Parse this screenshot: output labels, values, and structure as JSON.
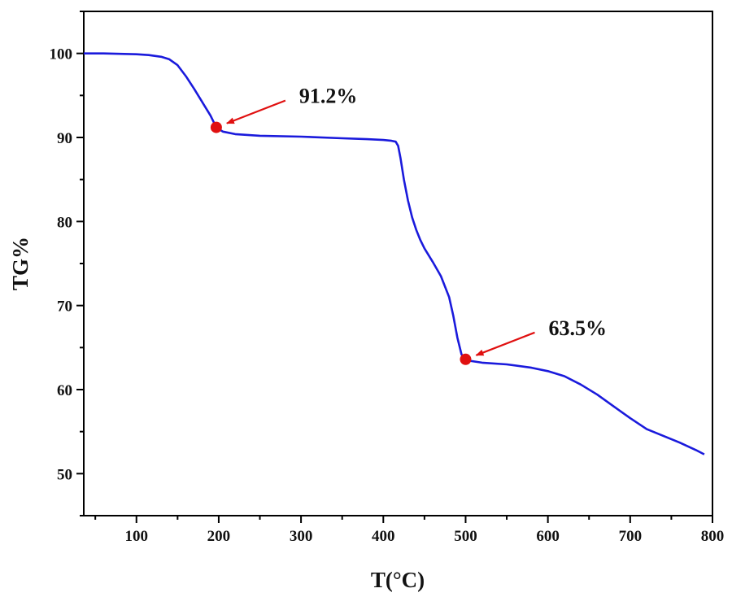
{
  "chart_data": {
    "type": "line",
    "title": "",
    "xlabel": "T(°C)",
    "ylabel": "TG%",
    "xlim": [
      36,
      800
    ],
    "ylim": [
      45,
      105
    ],
    "xticks": [
      100,
      200,
      300,
      400,
      500,
      600,
      700,
      800
    ],
    "xtick_labels": [
      "100",
      "200",
      "300",
      "400",
      "500",
      "600",
      "700",
      "800"
    ],
    "yticks": [
      50,
      60,
      70,
      80,
      90,
      100
    ],
    "ytick_labels": [
      "50",
      "60",
      "70",
      "80",
      "90",
      "100"
    ],
    "grid": false,
    "legend": "none",
    "series": [
      {
        "name": "",
        "color": "#1a1adc",
        "x": [
          36,
          60,
          80,
          100,
          115,
          130,
          140,
          150,
          160,
          170,
          180,
          190,
          197,
          205,
          220,
          250,
          300,
          350,
          380,
          400,
          410,
          415,
          418,
          421,
          425,
          430,
          435,
          440,
          445,
          450,
          460,
          470,
          480,
          485,
          490,
          495,
          500,
          520,
          550,
          580,
          600,
          620,
          640,
          660,
          680,
          700,
          720,
          740,
          760,
          780,
          790
        ],
        "y": [
          100,
          100,
          99.95,
          99.9,
          99.8,
          99.6,
          99.3,
          98.6,
          97.3,
          95.8,
          94.2,
          92.6,
          91.2,
          90.7,
          90.4,
          90.2,
          90.1,
          89.9,
          89.8,
          89.7,
          89.6,
          89.5,
          89.0,
          87.5,
          85.0,
          82.5,
          80.5,
          79.0,
          77.8,
          76.8,
          75.2,
          73.5,
          71.0,
          68.8,
          66.2,
          64.2,
          63.5,
          63.2,
          63.0,
          62.6,
          62.2,
          61.6,
          60.6,
          59.4,
          58.0,
          56.6,
          55.3,
          54.5,
          53.7,
          52.8,
          52.3
        ]
      }
    ],
    "annotations": [
      {
        "text": "91.2%",
        "x": 197,
        "y": 91.2,
        "marker_color": "#e01010"
      },
      {
        "text": "63.5%",
        "x": 500,
        "y": 63.6,
        "marker_color": "#e01010"
      }
    ]
  }
}
